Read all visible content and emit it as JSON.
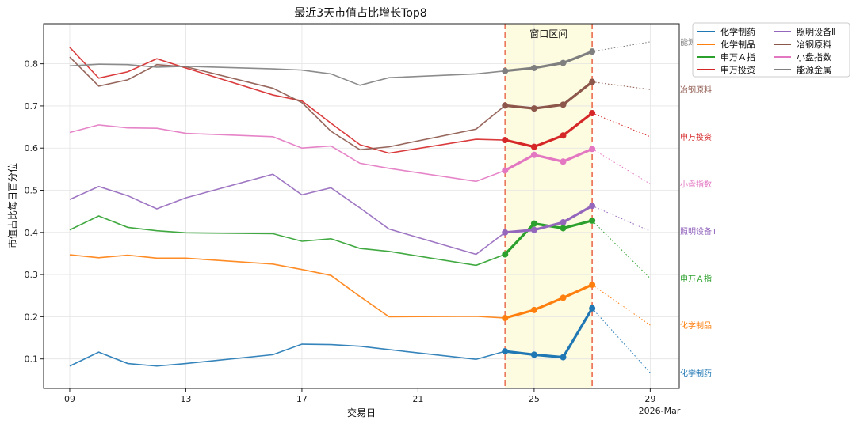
{
  "chart_data": {
    "type": "line",
    "title": "最近3天市值占比增长Top8",
    "xlabel": "交易日",
    "ylabel": "市值占比每日百分位",
    "x_ticks": [
      "09",
      "13",
      "17",
      "21",
      "25",
      "29"
    ],
    "x_tick_values": [
      9,
      13,
      17,
      21,
      25,
      29
    ],
    "x_corner_label": "2026-Mar",
    "xlim": [
      8.1,
      30
    ],
    "ylim": [
      0.03,
      0.895
    ],
    "y_ticks": [
      "0.1",
      "0.2",
      "0.3",
      "0.4",
      "0.5",
      "0.6",
      "0.7",
      "0.8"
    ],
    "y_tick_values": [
      0.1,
      0.2,
      0.3,
      0.4,
      0.5,
      0.6,
      0.7,
      0.8
    ],
    "grid": true,
    "legend_position": "outside-top-right",
    "window": {
      "label": "窗口区间",
      "start": 24,
      "end": 27,
      "fill": "#fdfbe0",
      "line_color": "#ec7a5e"
    },
    "series": [
      {
        "name": "化学制药",
        "color": "#1f77b4",
        "x": [
          9,
          10,
          11,
          12,
          13,
          16,
          17,
          18,
          19,
          20,
          23,
          24,
          25,
          26,
          27
        ],
        "y": [
          0.083,
          0.116,
          0.089,
          0.083,
          0.089,
          0.11,
          0.135,
          0.134,
          0.13,
          0.122,
          0.099,
          0.118,
          0.11,
          0.104,
          0.22
        ],
        "end_label_y": 0.067
      },
      {
        "name": "化学制品",
        "color": "#ff7f0e",
        "x": [
          9,
          10,
          11,
          12,
          13,
          16,
          17,
          18,
          19,
          20,
          23,
          24,
          25,
          26,
          27
        ],
        "y": [
          0.347,
          0.34,
          0.346,
          0.339,
          0.339,
          0.325,
          0.312,
          0.298,
          0.248,
          0.2,
          0.201,
          0.197,
          0.216,
          0.245,
          0.276
        ],
        "end_label_y": 0.18
      },
      {
        "name": "申万Ａ指",
        "color": "#2ca02c",
        "x": [
          9,
          10,
          11,
          12,
          13,
          16,
          17,
          18,
          19,
          20,
          23,
          24,
          25,
          26,
          27
        ],
        "y": [
          0.406,
          0.439,
          0.412,
          0.404,
          0.399,
          0.397,
          0.379,
          0.385,
          0.362,
          0.355,
          0.322,
          0.348,
          0.421,
          0.41,
          0.428
        ],
        "end_label_y": 0.291
      },
      {
        "name": "申万投资",
        "color": "#d62728",
        "x": [
          9,
          10,
          11,
          12,
          13,
          16,
          17,
          18,
          19,
          20,
          23,
          24,
          25,
          26,
          27
        ],
        "y": [
          0.839,
          0.766,
          0.781,
          0.812,
          0.79,
          0.726,
          0.712,
          0.659,
          0.608,
          0.588,
          0.621,
          0.619,
          0.603,
          0.63,
          0.683
        ],
        "end_label_y": 0.627
      },
      {
        "name": "照明设备Ⅱ",
        "color": "#9467bd",
        "x": [
          9,
          10,
          11,
          12,
          13,
          16,
          17,
          18,
          19,
          20,
          23,
          24,
          25,
          26,
          27
        ],
        "y": [
          0.478,
          0.509,
          0.487,
          0.456,
          0.482,
          0.538,
          0.489,
          0.506,
          0.458,
          0.408,
          0.348,
          0.4,
          0.406,
          0.424,
          0.463
        ],
        "end_label_y": 0.403
      },
      {
        "name": "冶钢原料",
        "color": "#8c564b",
        "x": [
          9,
          10,
          11,
          12,
          13,
          16,
          17,
          18,
          19,
          20,
          23,
          24,
          25,
          26,
          27
        ],
        "y": [
          0.816,
          0.747,
          0.762,
          0.798,
          0.793,
          0.742,
          0.708,
          0.64,
          0.596,
          0.603,
          0.645,
          0.701,
          0.694,
          0.703,
          0.757
        ],
        "end_label_y": 0.739
      },
      {
        "name": "小盘指数",
        "color": "#e377c2",
        "x": [
          9,
          10,
          11,
          12,
          13,
          16,
          17,
          18,
          19,
          20,
          23,
          24,
          25,
          26,
          27
        ],
        "y": [
          0.637,
          0.655,
          0.648,
          0.647,
          0.635,
          0.627,
          0.6,
          0.605,
          0.564,
          0.552,
          0.521,
          0.547,
          0.584,
          0.568,
          0.598
        ],
        "end_label_y": 0.515
      },
      {
        "name": "能源金属",
        "color": "#7f7f7f",
        "x": [
          9,
          10,
          11,
          12,
          13,
          16,
          17,
          18,
          19,
          20,
          23,
          24,
          25,
          26,
          27
        ],
        "y": [
          0.795,
          0.799,
          0.798,
          0.792,
          0.794,
          0.788,
          0.785,
          0.776,
          0.749,
          0.767,
          0.776,
          0.783,
          0.79,
          0.802,
          0.829
        ],
        "end_label_y": 0.852
      }
    ]
  }
}
